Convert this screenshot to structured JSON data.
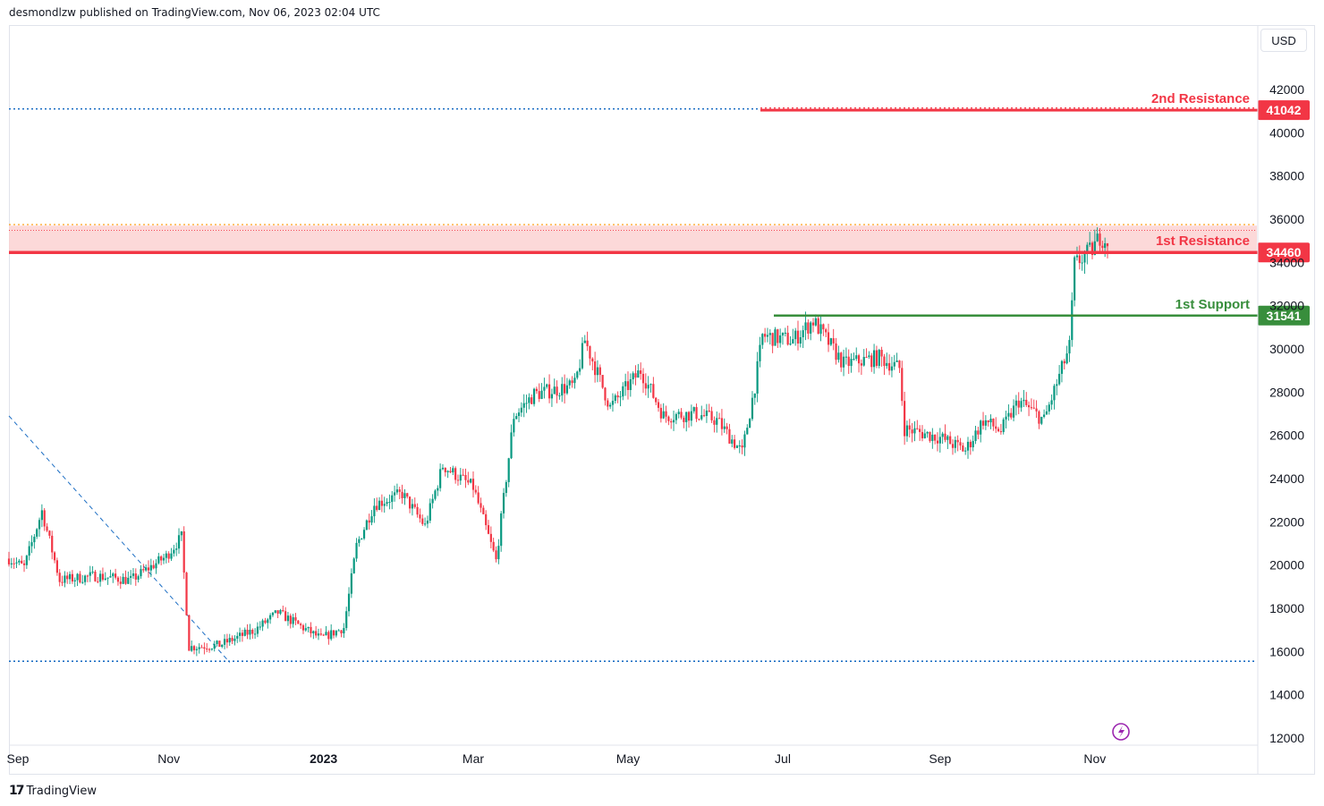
{
  "header": {
    "text": "desmondlzw published on TradingView.com, Nov 06, 2023 02:04 UTC"
  },
  "footer": {
    "brand": "TradingView",
    "logo": "17"
  },
  "currency": "USD",
  "icons": {
    "flash": "flash-icon"
  },
  "colors": {
    "up": "#089981",
    "down": "#f23645",
    "resistance": "#f23645",
    "support": "#388e3c",
    "zone": "#fbd0d0",
    "guide": "#1e6fc4",
    "orange_dotted": "#ff9800"
  },
  "chart_data": {
    "type": "candlestick",
    "symbol_currency": "USD",
    "yaxis": {
      "ticks": [
        "42000",
        "40000",
        "38000",
        "36000",
        "34000",
        "32000",
        "30000",
        "28000",
        "26000",
        "24000",
        "22000",
        "20000",
        "18000",
        "16000",
        "14000",
        "12000"
      ],
      "range": [
        12000,
        42000
      ]
    },
    "xaxis": {
      "ticks": [
        "Sep",
        "Nov",
        "2023",
        "Mar",
        "May",
        "Jul",
        "Sep",
        "Nov"
      ]
    },
    "levels": [
      {
        "name": "2nd Resistance",
        "price": "41042",
        "value": 41042
      },
      {
        "name": "1st Resistance",
        "price": "34460",
        "value": 34460
      },
      {
        "name": "1st Support",
        "price": "31541",
        "value": 31541
      }
    ],
    "resistance_zone": [
      34460,
      35700
    ],
    "dotted_lines": [
      41100,
      15550,
      35750
    ],
    "trendline": [
      [
        "2022-08-30",
        26900
      ],
      [
        "2022-11-25",
        15500
      ]
    ],
    "price_path": [
      [
        "2022-08-30",
        20300
      ],
      [
        "2022-09-05",
        19900
      ],
      [
        "2022-09-12",
        22500
      ],
      [
        "2022-09-19",
        19300
      ],
      [
        "2022-10-03",
        19500
      ],
      [
        "2022-10-17",
        19300
      ],
      [
        "2022-10-31",
        20400
      ],
      [
        "2022-11-06",
        21300
      ],
      [
        "2022-11-09",
        16200
      ],
      [
        "2022-11-21",
        16300
      ],
      [
        "2022-12-05",
        17000
      ],
      [
        "2022-12-14",
        17800
      ],
      [
        "2022-12-31",
        16600
      ],
      [
        "2023-01-09",
        17100
      ],
      [
        "2023-01-14",
        20900
      ],
      [
        "2023-01-21",
        22800
      ],
      [
        "2023-02-01",
        23300
      ],
      [
        "2023-02-10",
        21800
      ],
      [
        "2023-02-17",
        24600
      ],
      [
        "2023-03-01",
        23600
      ],
      [
        "2023-03-10",
        20200
      ],
      [
        "2023-03-17",
        26900
      ],
      [
        "2023-03-25",
        27900
      ],
      [
        "2023-04-10",
        28300
      ],
      [
        "2023-04-14",
        30400
      ],
      [
        "2023-04-24",
        27300
      ],
      [
        "2023-05-06",
        29000
      ],
      [
        "2023-05-15",
        26900
      ],
      [
        "2023-05-28",
        27000
      ],
      [
        "2023-06-05",
        26700
      ],
      [
        "2023-06-15",
        25200
      ],
      [
        "2023-06-20",
        28300
      ],
      [
        "2023-06-23",
        30600
      ],
      [
        "2023-07-05",
        30400
      ],
      [
        "2023-07-13",
        31300
      ],
      [
        "2023-07-25",
        29300
      ],
      [
        "2023-08-08",
        29600
      ],
      [
        "2023-08-16",
        29100
      ],
      [
        "2023-08-18",
        26300
      ],
      [
        "2023-09-01",
        25900
      ],
      [
        "2023-09-11",
        25300
      ],
      [
        "2023-09-18",
        26700
      ],
      [
        "2023-09-25",
        26200
      ],
      [
        "2023-10-02",
        27600
      ],
      [
        "2023-10-12",
        26700
      ],
      [
        "2023-10-17",
        28400
      ],
      [
        "2023-10-22",
        30100
      ],
      [
        "2023-10-24",
        33900
      ],
      [
        "2023-10-31",
        34600
      ],
      [
        "2023-11-03",
        35200
      ],
      [
        "2023-11-06",
        35000
      ]
    ]
  }
}
